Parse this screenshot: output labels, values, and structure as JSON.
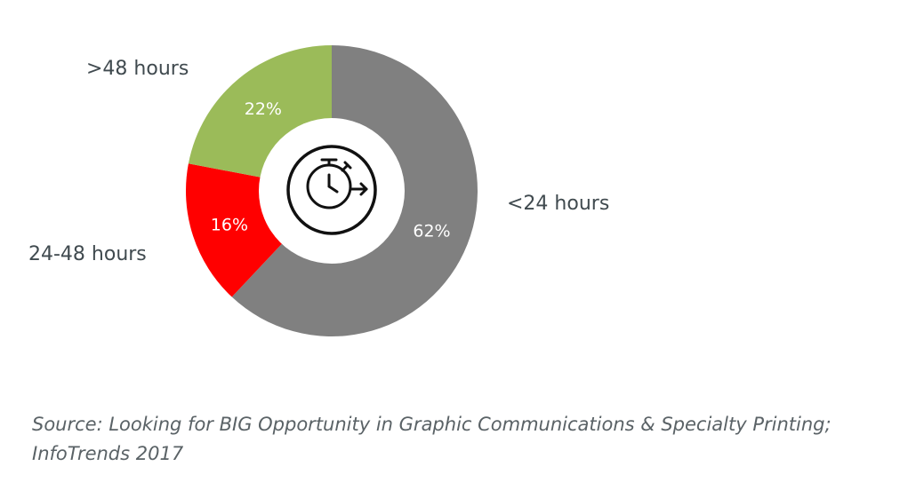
{
  "chart_data": {
    "type": "pie",
    "style": "donut",
    "categories": [
      "<24 hours",
      "24-48 hours",
      ">48 hours"
    ],
    "values": [
      62,
      16,
      22
    ],
    "value_labels": [
      "62%",
      "16%",
      "22%"
    ],
    "colors": [
      "#808080",
      "#ff0000",
      "#9bbb59"
    ],
    "center_icon": "stopwatch-icon"
  },
  "source": "Source: Looking for BIG Opportunity in Graphic Communications & Specialty Printing; InfoTrends 2017"
}
